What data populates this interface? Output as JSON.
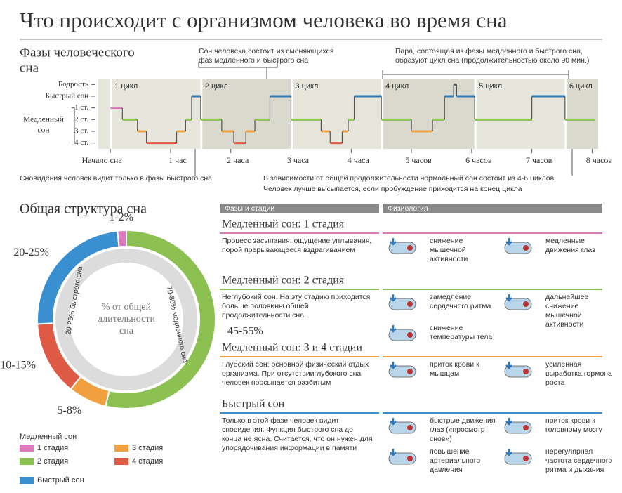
{
  "title": "Что происходит с организмом человека во время сна",
  "chart_data": [
    {
      "type": "step",
      "title": [
        "Фазы человеческого",
        "сна"
      ],
      "x": [
        0,
        0.2,
        0.45,
        0.6,
        1.1,
        1.25,
        1.35,
        1.5,
        1.85,
        2.05,
        2.25,
        2.4,
        2.65,
        3.0,
        3.5,
        3.65,
        3.85,
        3.95,
        4.05,
        4.5,
        5.0,
        5.35,
        5.55,
        5.7,
        5.75,
        6.05,
        7.0,
        7.55
      ],
      "end": 8.05,
      "values": [
        3,
        2,
        1,
        0,
        1,
        2,
        4,
        2,
        1,
        0,
        1,
        2,
        4,
        2,
        1,
        0,
        1,
        2,
        4,
        2,
        1,
        2,
        4,
        5,
        4,
        2,
        4,
        2
      ],
      "level_colors": [
        "#de5a45",
        "#f0a040",
        "#8cc152",
        "#d97bbd",
        "#2b7cc0",
        "#555555"
      ],
      "xlim": [
        -0.2,
        8.1
      ],
      "ylim": [
        -0.5,
        5.5
      ],
      "xticks": [
        {
          "value": 0,
          "label": "Начало сна"
        },
        {
          "value": 1,
          "label": "1 час"
        },
        {
          "value": 2,
          "label": "2 часа"
        },
        {
          "value": 3,
          "label": "3 часа"
        },
        {
          "value": 4,
          "label": "4 часа"
        },
        {
          "value": 5,
          "label": "5 часов"
        },
        {
          "value": 6,
          "label": "6 часов"
        },
        {
          "value": 7,
          "label": "7 часов"
        },
        {
          "value": 8,
          "label": "8 часов"
        }
      ],
      "yticks": [
        {
          "value": 5,
          "label": "Бодрость"
        },
        {
          "value": 4,
          "label": "Быстрый сон"
        },
        {
          "value": 3,
          "label": "1 ст."
        },
        {
          "value": 2,
          "label": "2 ст."
        },
        {
          "value": 1,
          "label": "3 ст."
        },
        {
          "value": 0,
          "label": "4 ст."
        }
      ],
      "y_group_label": [
        "Медленный",
        "сон"
      ],
      "cycles": [
        {
          "label": "1 цикл",
          "start": 0
        },
        {
          "label": "2 цикл",
          "start": 1.5
        },
        {
          "label": "3 цикл",
          "start": 3.0
        },
        {
          "label": "4 цикл",
          "start": 4.5
        },
        {
          "label": "5 цикл",
          "start": 6.05
        },
        {
          "label": "6 цикл",
          "start": 7.55
        }
      ],
      "annotations": {
        "cycle_composition": [
          "Сон человека состоит из сменяющихся",
          "фаз медленного и быстрого сна"
        ],
        "cycle_definition": [
          "Пара, состоящая из фазы медленного и быстрого сна,",
          "образуют цикл сна (продолжительностью около 90 мин.)"
        ],
        "dreams": "Сновидения человек видит только в фазы быстрого сна",
        "cycle_count": [
          "В зависимости от общей продолжительности нормальный сон состоит из 4-6 циклов.",
          "Человек лучше высыпается, если пробуждение приходится на конец цикла"
        ]
      }
    },
    {
      "type": "pie",
      "title": "Общая структура сна",
      "categories": [
        "1 стадия",
        "2 стадия",
        "3 стадия",
        "4 стадия",
        "Быстрый сон"
      ],
      "values": [
        1.5,
        50,
        6.5,
        12.5,
        22.5
      ],
      "value_labels": [
        "1-2%",
        "45-55%",
        "5-8%",
        "10-15%",
        "20-25%"
      ],
      "colors": [
        "#d97bbd",
        "#8cc152",
        "#f0a040",
        "#de5a45",
        "#3a8fd0"
      ],
      "legend_title": "Медленный сон",
      "center_label": [
        "% от общей",
        "длительности",
        "сна"
      ],
      "inner_labels": [
        "70-80% медленного сна",
        "20-25% быстрого сна"
      ]
    }
  ],
  "table": {
    "headers": [
      "Фазы и стадии",
      "Физиология"
    ],
    "sections": [
      {
        "title": "Медленный сон: 1 стадия",
        "color": "#d97bbd",
        "description": "Процесс засыпания: ощущение уплывания, порой прерывающееся вздрагиванием",
        "items": [
          "снижение мышечной активности",
          "медленные движения глаз"
        ]
      },
      {
        "title": "Медленный сон: 2 стадия",
        "color": "#8cc152",
        "description": "Неглубокий сон. На эту стадию приходится больше половины общей продолжительности сна",
        "items": [
          "замедление сердечного ритма",
          "дальнейшее снижение мышечной активности",
          "снижение температуры тела"
        ]
      },
      {
        "title": "Медленный сон: 3 и 4 стадии",
        "color": "#f0a040",
        "description": "Глубокий сон: основной физический отдых организма. При отсутствииглубокого сна человек просыпается разбитым",
        "items": [
          "приток крови к мышцам",
          "усиленная выработка гормона роста"
        ]
      },
      {
        "title": "Быстрый сон",
        "color": "#3a8fd0",
        "description": "Только в этой фазе человек видит сновидения. Функция быстрого сна до конца не ясна. Считается, что он нужен для упорядочивания информации в памяти",
        "items": [
          "быстрые движения глаз («просмотр снов»)",
          "приток крови к головному мозгу",
          "повышение артериального давления",
          "нерегулярная частота сердечного ритма и дыхания"
        ]
      }
    ]
  }
}
